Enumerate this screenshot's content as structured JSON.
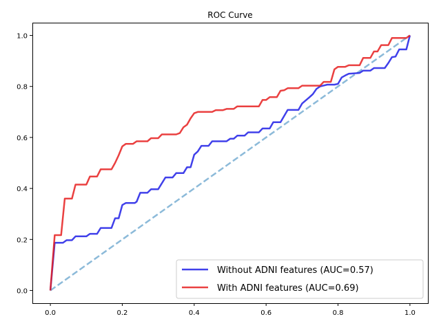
{
  "chart_data": {
    "type": "line",
    "title": "ROC Curve",
    "xlabel": "",
    "ylabel": "",
    "xlim": [
      -0.05,
      1.05
    ],
    "ylim": [
      -0.05,
      1.05
    ],
    "x_ticks": [
      "0.0",
      "0.2",
      "0.4",
      "0.6",
      "0.8",
      "1.0"
    ],
    "y_ticks": [
      "0.0",
      "0.2",
      "0.4",
      "0.6",
      "0.8",
      "1.0"
    ],
    "grid": false,
    "legend_position": "lower-right",
    "series": [
      {
        "name": "Without ADNI features (AUC=0.57)",
        "color": "#1f1fe6",
        "points": [
          [
            0,
            0
          ],
          [
            0.012,
            0.187
          ],
          [
            0.035,
            0.187
          ],
          [
            0.045,
            0.197
          ],
          [
            0.06,
            0.197
          ],
          [
            0.07,
            0.212
          ],
          [
            0.1,
            0.212
          ],
          [
            0.11,
            0.222
          ],
          [
            0.13,
            0.222
          ],
          [
            0.14,
            0.245
          ],
          [
            0.17,
            0.245
          ],
          [
            0.18,
            0.283
          ],
          [
            0.19,
            0.283
          ],
          [
            0.2,
            0.335
          ],
          [
            0.21,
            0.343
          ],
          [
            0.235,
            0.343
          ],
          [
            0.24,
            0.348
          ],
          [
            0.25,
            0.383
          ],
          [
            0.27,
            0.383
          ],
          [
            0.28,
            0.397
          ],
          [
            0.3,
            0.397
          ],
          [
            0.32,
            0.443
          ],
          [
            0.34,
            0.443
          ],
          [
            0.35,
            0.46
          ],
          [
            0.37,
            0.46
          ],
          [
            0.38,
            0.483
          ],
          [
            0.39,
            0.483
          ],
          [
            0.4,
            0.532
          ],
          [
            0.41,
            0.545
          ],
          [
            0.42,
            0.567
          ],
          [
            0.44,
            0.567
          ],
          [
            0.45,
            0.585
          ],
          [
            0.49,
            0.585
          ],
          [
            0.5,
            0.595
          ],
          [
            0.51,
            0.595
          ],
          [
            0.52,
            0.607
          ],
          [
            0.54,
            0.607
          ],
          [
            0.55,
            0.62
          ],
          [
            0.58,
            0.62
          ],
          [
            0.59,
            0.635
          ],
          [
            0.61,
            0.635
          ],
          [
            0.62,
            0.66
          ],
          [
            0.64,
            0.66
          ],
          [
            0.66,
            0.708
          ],
          [
            0.69,
            0.708
          ],
          [
            0.7,
            0.733
          ],
          [
            0.72,
            0.757
          ],
          [
            0.73,
            0.77
          ],
          [
            0.74,
            0.79
          ],
          [
            0.75,
            0.8
          ],
          [
            0.77,
            0.807
          ],
          [
            0.79,
            0.807
          ],
          [
            0.8,
            0.81
          ],
          [
            0.81,
            0.835
          ],
          [
            0.82,
            0.843
          ],
          [
            0.83,
            0.85
          ],
          [
            0.86,
            0.853
          ],
          [
            0.87,
            0.862
          ],
          [
            0.89,
            0.862
          ],
          [
            0.9,
            0.872
          ],
          [
            0.93,
            0.872
          ],
          [
            0.94,
            0.892
          ],
          [
            0.95,
            0.915
          ],
          [
            0.96,
            0.917
          ],
          [
            0.97,
            0.945
          ],
          [
            0.99,
            0.945
          ],
          [
            1,
            1
          ]
        ]
      },
      {
        "name": "With ADNI features (AUC=0.69)",
        "color": "#e61f1f",
        "points": [
          [
            0,
            0
          ],
          [
            0.012,
            0.217
          ],
          [
            0.03,
            0.217
          ],
          [
            0.04,
            0.36
          ],
          [
            0.06,
            0.36
          ],
          [
            0.07,
            0.415
          ],
          [
            0.1,
            0.415
          ],
          [
            0.11,
            0.447
          ],
          [
            0.13,
            0.447
          ],
          [
            0.14,
            0.475
          ],
          [
            0.17,
            0.475
          ],
          [
            0.18,
            0.5
          ],
          [
            0.19,
            0.53
          ],
          [
            0.2,
            0.565
          ],
          [
            0.21,
            0.575
          ],
          [
            0.23,
            0.575
          ],
          [
            0.24,
            0.585
          ],
          [
            0.27,
            0.585
          ],
          [
            0.28,
            0.597
          ],
          [
            0.3,
            0.597
          ],
          [
            0.31,
            0.612
          ],
          [
            0.35,
            0.612
          ],
          [
            0.36,
            0.617
          ],
          [
            0.37,
            0.64
          ],
          [
            0.38,
            0.65
          ],
          [
            0.39,
            0.675
          ],
          [
            0.4,
            0.695
          ],
          [
            0.41,
            0.7
          ],
          [
            0.45,
            0.7
          ],
          [
            0.46,
            0.707
          ],
          [
            0.48,
            0.707
          ],
          [
            0.49,
            0.712
          ],
          [
            0.51,
            0.712
          ],
          [
            0.52,
            0.722
          ],
          [
            0.58,
            0.722
          ],
          [
            0.59,
            0.747
          ],
          [
            0.6,
            0.747
          ],
          [
            0.61,
            0.758
          ],
          [
            0.63,
            0.758
          ],
          [
            0.64,
            0.783
          ],
          [
            0.65,
            0.785
          ],
          [
            0.66,
            0.793
          ],
          [
            0.69,
            0.793
          ],
          [
            0.7,
            0.803
          ],
          [
            0.75,
            0.803
          ],
          [
            0.76,
            0.818
          ],
          [
            0.78,
            0.818
          ],
          [
            0.79,
            0.867
          ],
          [
            0.8,
            0.877
          ],
          [
            0.82,
            0.877
          ],
          [
            0.83,
            0.883
          ],
          [
            0.86,
            0.883
          ],
          [
            0.87,
            0.912
          ],
          [
            0.89,
            0.912
          ],
          [
            0.9,
            0.937
          ],
          [
            0.91,
            0.937
          ],
          [
            0.92,
            0.962
          ],
          [
            0.94,
            0.962
          ],
          [
            0.95,
            0.99
          ],
          [
            0.99,
            0.99
          ],
          [
            1,
            1
          ]
        ]
      },
      {
        "name": "",
        "color": "#7fb2d5",
        "dashed": true,
        "points": [
          [
            0,
            0
          ],
          [
            1,
            1
          ]
        ]
      }
    ]
  }
}
